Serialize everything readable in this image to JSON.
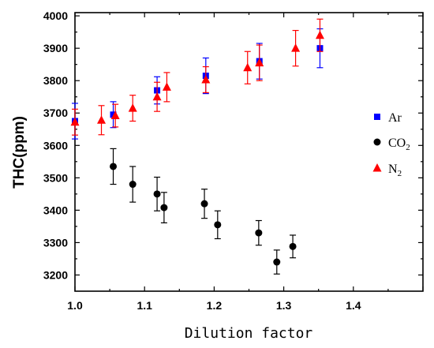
{
  "chart_data": {
    "type": "scatter",
    "xlabel": "Dilution factor",
    "ylabel": "THC(ppm)",
    "xlim": [
      1.0,
      1.5
    ],
    "ylim": [
      3150,
      4010
    ],
    "x_ticks": [
      1.0,
      1.1,
      1.2,
      1.3,
      1.4
    ],
    "x_tick_labels": [
      "1.0",
      "1.1",
      "1.2",
      "1.3",
      "1.4"
    ],
    "y_ticks": [
      3200,
      3300,
      3400,
      3500,
      3600,
      3700,
      3800,
      3900,
      4000
    ],
    "y_tick_labels": [
      "3200",
      "3300",
      "3400",
      "3500",
      "3600",
      "3700",
      "3800",
      "3900",
      "4000"
    ],
    "legend_position": "right",
    "series": [
      {
        "name": "Ar",
        "legend_label": "Ar",
        "marker": "square",
        "color": "#0000ff",
        "points": [
          {
            "x": 1.0,
            "y": 3675,
            "err": 55
          },
          {
            "x": 1.055,
            "y": 3695,
            "err": 40
          },
          {
            "x": 1.118,
            "y": 3770,
            "err": 42
          },
          {
            "x": 1.188,
            "y": 3815,
            "err": 55
          },
          {
            "x": 1.265,
            "y": 3860,
            "err": 55
          },
          {
            "x": 1.352,
            "y": 3900,
            "err": 60
          }
        ]
      },
      {
        "name": "CO2",
        "legend_label": "CO",
        "legend_sub": "2",
        "marker": "circle",
        "color": "#000000",
        "points": [
          {
            "x": 1.055,
            "y": 3535,
            "err": 55
          },
          {
            "x": 1.083,
            "y": 3480,
            "err": 55
          },
          {
            "x": 1.118,
            "y": 3450,
            "err": 52
          },
          {
            "x": 1.128,
            "y": 3408,
            "err": 47
          },
          {
            "x": 1.186,
            "y": 3420,
            "err": 45
          },
          {
            "x": 1.205,
            "y": 3355,
            "err": 43
          },
          {
            "x": 1.264,
            "y": 3330,
            "err": 38
          },
          {
            "x": 1.29,
            "y": 3240,
            "err": 37
          },
          {
            "x": 1.313,
            "y": 3288,
            "err": 35
          }
        ]
      },
      {
        "name": "N2",
        "legend_label": "N",
        "legend_sub": "2",
        "marker": "triangle",
        "color": "#ff0000",
        "points": [
          {
            "x": 1.0,
            "y": 3672,
            "err": 40
          },
          {
            "x": 1.038,
            "y": 3678,
            "err": 45
          },
          {
            "x": 1.058,
            "y": 3692,
            "err": 35
          },
          {
            "x": 1.083,
            "y": 3715,
            "err": 40
          },
          {
            "x": 1.118,
            "y": 3750,
            "err": 45
          },
          {
            "x": 1.132,
            "y": 3780,
            "err": 45
          },
          {
            "x": 1.188,
            "y": 3803,
            "err": 40
          },
          {
            "x": 1.248,
            "y": 3840,
            "err": 50
          },
          {
            "x": 1.265,
            "y": 3855,
            "err": 55
          },
          {
            "x": 1.317,
            "y": 3900,
            "err": 55
          },
          {
            "x": 1.352,
            "y": 3940,
            "err": 50
          }
        ]
      }
    ]
  }
}
